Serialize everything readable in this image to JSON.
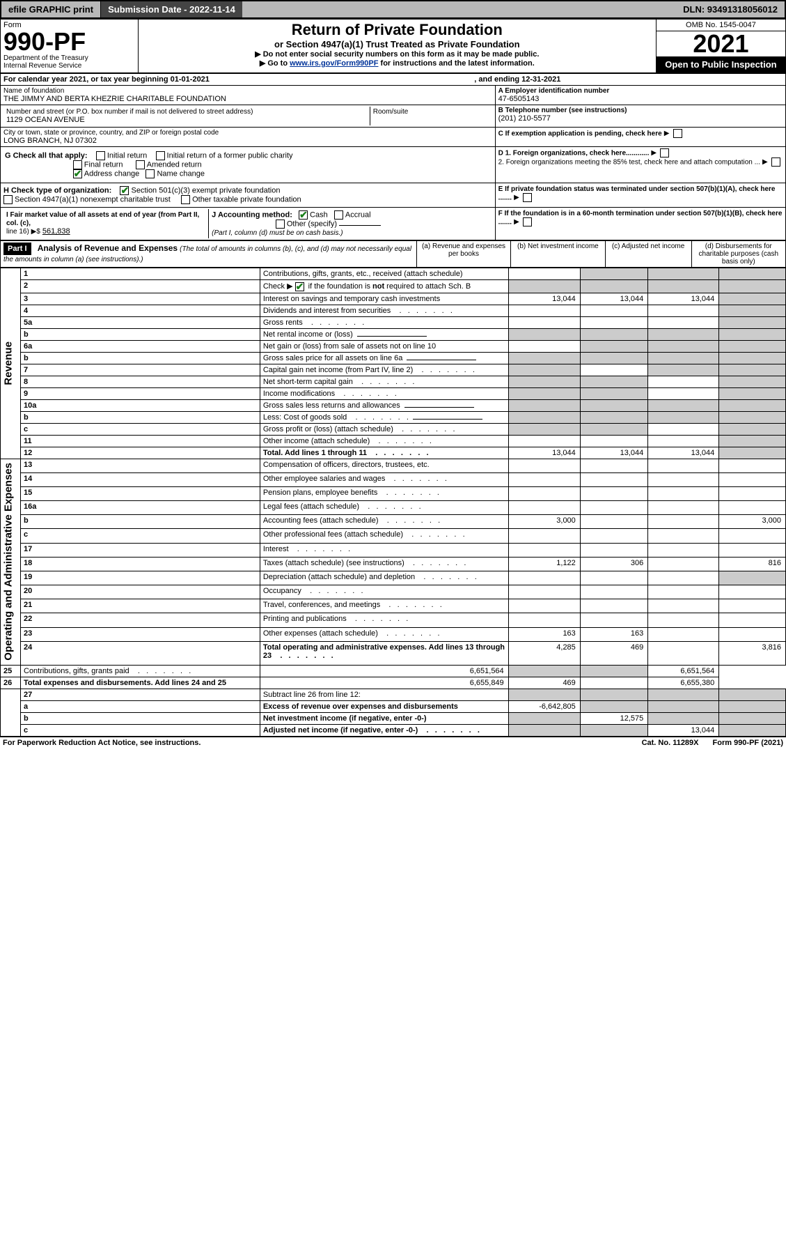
{
  "top": {
    "efile": "efile GRAPHIC print",
    "sub_label": "Submission Date - ",
    "sub_date": "2022-11-14",
    "dln": "DLN: 93491318056012"
  },
  "header": {
    "form_word": "Form",
    "form_no": "990-PF",
    "dept1": "Department of the Treasury",
    "dept2": "Internal Revenue Service",
    "title": "Return of Private Foundation",
    "subtitle": "or Section 4947(a)(1) Trust Treated as Private Foundation",
    "instr1": "▶ Do not enter social security numbers on this form as it may be made public.",
    "instr2_pre": "▶ Go to ",
    "instr2_link": "www.irs.gov/Form990PF",
    "instr2_post": " for instructions and the latest information.",
    "omb": "OMB No. 1545-0047",
    "year": "2021",
    "inspect": "Open to Public Inspection"
  },
  "cal": {
    "line": "For calendar year 2021, or tax year beginning 01-01-2021",
    "ending": ", and ending 12-31-2021"
  },
  "entity": {
    "name_label": "Name of foundation",
    "name": "THE JIMMY AND BERTA KHEZRIE CHARITABLE FOUNDATION",
    "addr_label": "Number and street (or P.O. box number if mail is not delivered to street address)",
    "addr": "1129 OCEAN AVENUE",
    "room_label": "Room/suite",
    "city_label": "City or town, state or province, country, and ZIP or foreign postal code",
    "city": "LONG BRANCH, NJ  07302",
    "a_label": "A Employer identification number",
    "a_val": "47-6505143",
    "b_label": "B Telephone number (see instructions)",
    "b_val": "(201) 210-5577",
    "c_label": "C If exemption application is pending, check here",
    "d1_label": "D 1. Foreign organizations, check here............",
    "d2_label": "2. Foreign organizations meeting the 85% test, check here and attach computation ...",
    "e_label": "E  If private foundation status was terminated under section 507(b)(1)(A), check here .......",
    "f_label": "F  If the foundation is in a 60-month termination under section 507(b)(1)(B), check here .......",
    "g_label": "G Check all that apply:",
    "g_initial": "Initial return",
    "g_initial_former": "Initial return of a former public charity",
    "g_final": "Final return",
    "g_amended": "Amended return",
    "g_address": "Address change",
    "g_name": "Name change",
    "h_label": "H Check type of organization:",
    "h_501c3": "Section 501(c)(3) exempt private foundation",
    "h_4947": "Section 4947(a)(1) nonexempt charitable trust",
    "h_other_tax": "Other taxable private foundation",
    "i_label": "I Fair market value of all assets at end of year (from Part II, col. (c),",
    "i_line": "line 16) ▶$",
    "i_val": "561,838",
    "j_label": "J Accounting method:",
    "j_cash": "Cash",
    "j_accrual": "Accrual",
    "j_other": "Other (specify)",
    "j_note": "(Part I, column (d) must be on cash basis.)"
  },
  "part1": {
    "label": "Part I",
    "title": "Analysis of Revenue and Expenses",
    "note": "(The total of amounts in columns (b), (c), and (d) may not necessarily equal the amounts in column (a) (see instructions).)",
    "col_a": "(a)   Revenue and expenses per books",
    "col_b": "(b)  Net investment income",
    "col_c": "(c)  Adjusted net income",
    "col_d": "(d)  Disbursements for charitable purposes (cash basis only)"
  },
  "sections": {
    "revenue": "Revenue",
    "opex": "Operating and Administrative Expenses"
  },
  "rows": [
    {
      "n": "1",
      "label": "Contributions, gifts, grants, etc., received (attach schedule)",
      "a": "",
      "b": "g",
      "c": "g",
      "d": "g"
    },
    {
      "n": "2",
      "label": "Check ▶ ☑ if the foundation is not required to attach Sch. B",
      "dots": true,
      "a": "g",
      "b": "g",
      "c": "g",
      "d": "g"
    },
    {
      "n": "3",
      "label": "Interest on savings and temporary cash investments",
      "a": "13,044",
      "b": "13,044",
      "c": "13,044",
      "d": "g"
    },
    {
      "n": "4",
      "label": "Dividends and interest from securities",
      "dots": true,
      "a": "",
      "b": "",
      "c": "",
      "d": "g"
    },
    {
      "n": "5a",
      "label": "Gross rents",
      "dots": true,
      "a": "",
      "b": "",
      "c": "",
      "d": "g"
    },
    {
      "n": "b",
      "label": "Net rental income or (loss)",
      "input": true,
      "a": "g",
      "b": "g",
      "c": "g",
      "d": "g"
    },
    {
      "n": "6a",
      "label": "Net gain or (loss) from sale of assets not on line 10",
      "a": "",
      "b": "g",
      "c": "g",
      "d": "g"
    },
    {
      "n": "b",
      "label": "Gross sales price for all assets on line 6a",
      "input": true,
      "a": "g",
      "b": "g",
      "c": "g",
      "d": "g"
    },
    {
      "n": "7",
      "label": "Capital gain net income (from Part IV, line 2)",
      "dots": true,
      "a": "g",
      "b": "",
      "c": "g",
      "d": "g"
    },
    {
      "n": "8",
      "label": "Net short-term capital gain",
      "dots": true,
      "a": "g",
      "b": "g",
      "c": "",
      "d": "g"
    },
    {
      "n": "9",
      "label": "Income modifications",
      "dots": true,
      "a": "g",
      "b": "g",
      "c": "",
      "d": "g"
    },
    {
      "n": "10a",
      "label": "Gross sales less returns and allowances",
      "input": true,
      "a": "g",
      "b": "g",
      "c": "g",
      "d": "g"
    },
    {
      "n": "b",
      "label": "Less: Cost of goods sold",
      "dots": true,
      "input": true,
      "a": "g",
      "b": "g",
      "c": "g",
      "d": "g"
    },
    {
      "n": "c",
      "label": "Gross profit or (loss) (attach schedule)",
      "dots": true,
      "a": "g",
      "b": "g",
      "c": "",
      "d": "g"
    },
    {
      "n": "11",
      "label": "Other income (attach schedule)",
      "dots": true,
      "a": "",
      "b": "",
      "c": "",
      "d": "g"
    },
    {
      "n": "12",
      "label": "Total. Add lines 1 through 11",
      "dots": true,
      "bold": true,
      "a": "13,044",
      "b": "13,044",
      "c": "13,044",
      "d": "g"
    },
    {
      "n": "13",
      "label": "Compensation of officers, directors, trustees, etc.",
      "a": "",
      "b": "",
      "c": "",
      "d": ""
    },
    {
      "n": "14",
      "label": "Other employee salaries and wages",
      "dots": true,
      "a": "",
      "b": "",
      "c": "",
      "d": ""
    },
    {
      "n": "15",
      "label": "Pension plans, employee benefits",
      "dots": true,
      "a": "",
      "b": "",
      "c": "",
      "d": ""
    },
    {
      "n": "16a",
      "label": "Legal fees (attach schedule)",
      "dots": true,
      "a": "",
      "b": "",
      "c": "",
      "d": ""
    },
    {
      "n": "b",
      "label": "Accounting fees (attach schedule)",
      "dots": true,
      "a": "3,000",
      "b": "",
      "c": "",
      "d": "3,000"
    },
    {
      "n": "c",
      "label": "Other professional fees (attach schedule)",
      "dots": true,
      "a": "",
      "b": "",
      "c": "",
      "d": ""
    },
    {
      "n": "17",
      "label": "Interest",
      "dots": true,
      "a": "",
      "b": "",
      "c": "",
      "d": ""
    },
    {
      "n": "18",
      "label": "Taxes (attach schedule) (see instructions)",
      "dots": true,
      "a": "1,122",
      "b": "306",
      "c": "",
      "d": "816"
    },
    {
      "n": "19",
      "label": "Depreciation (attach schedule) and depletion",
      "dots": true,
      "a": "",
      "b": "",
      "c": "",
      "d": "g"
    },
    {
      "n": "20",
      "label": "Occupancy",
      "dots": true,
      "a": "",
      "b": "",
      "c": "",
      "d": ""
    },
    {
      "n": "21",
      "label": "Travel, conferences, and meetings",
      "dots": true,
      "a": "",
      "b": "",
      "c": "",
      "d": ""
    },
    {
      "n": "22",
      "label": "Printing and publications",
      "dots": true,
      "a": "",
      "b": "",
      "c": "",
      "d": ""
    },
    {
      "n": "23",
      "label": "Other expenses (attach schedule)",
      "dots": true,
      "a": "163",
      "b": "163",
      "c": "",
      "d": ""
    },
    {
      "n": "24",
      "label": "Total operating and administrative expenses. Add lines 13 through 23",
      "dots": true,
      "bold": true,
      "a": "4,285",
      "b": "469",
      "c": "",
      "d": "3,816"
    },
    {
      "n": "25",
      "label": "Contributions, gifts, grants paid",
      "dots": true,
      "a": "6,651,564",
      "b": "g",
      "c": "g",
      "d": "6,651,564"
    },
    {
      "n": "26",
      "label": "Total expenses and disbursements. Add lines 24 and 25",
      "bold": true,
      "a": "6,655,849",
      "b": "469",
      "c": "",
      "d": "6,655,380"
    },
    {
      "n": "27",
      "label": "Subtract line 26 from line 12:",
      "a": "g",
      "b": "g",
      "c": "g",
      "d": "g"
    },
    {
      "n": "a",
      "label": "Excess of revenue over expenses and disbursements",
      "bold": true,
      "a": "-6,642,805",
      "b": "g",
      "c": "g",
      "d": "g"
    },
    {
      "n": "b",
      "label": "Net investment income (if negative, enter -0-)",
      "bold": true,
      "a": "g",
      "b": "12,575",
      "c": "g",
      "d": "g"
    },
    {
      "n": "c",
      "label": "Adjusted net income (if negative, enter -0-)",
      "dots": true,
      "bold": true,
      "a": "g",
      "b": "g",
      "c": "13,044",
      "d": "g"
    }
  ],
  "footer": {
    "pra": "For Paperwork Reduction Act Notice, see instructions.",
    "cat": "Cat. No. 11289X",
    "form": "Form 990-PF (2021)"
  },
  "colors": {
    "grey": "#cccccc",
    "link": "#003399",
    "green_check": "#1a7f1a"
  }
}
